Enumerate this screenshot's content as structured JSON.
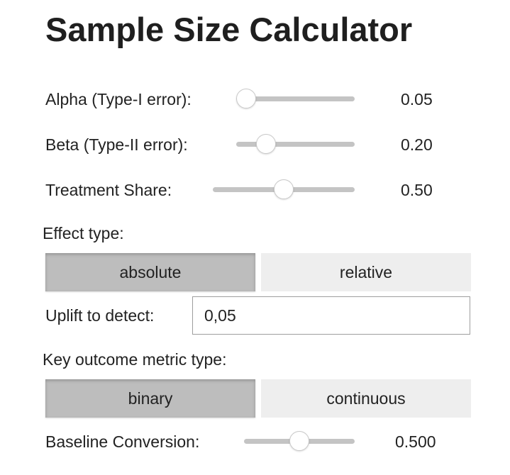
{
  "title": "Sample Size Calculator",
  "alpha": {
    "label": "Alpha (Type-I error):",
    "value": "0.05",
    "slider_fraction": 0.0
  },
  "beta": {
    "label": "Beta (Type-II error):",
    "value": "0.20",
    "slider_fraction": 0.2
  },
  "treatment_share": {
    "label": "Treatment Share:",
    "value": "0.50",
    "slider_fraction": 0.5
  },
  "effect_type": {
    "label": "Effect type:",
    "options": [
      "absolute",
      "relative"
    ],
    "selected": "absolute"
  },
  "uplift": {
    "label": "Uplift to detect:",
    "value": "0,05"
  },
  "metric_type": {
    "label": "Key outcome metric type:",
    "options": [
      "binary",
      "continuous"
    ],
    "selected": "binary"
  },
  "baseline": {
    "label": "Baseline Conversion:",
    "value": "0.500",
    "slider_fraction": 0.5
  },
  "colors": {
    "active_button": "#bdbdbd",
    "inactive_button": "#eeeeee",
    "slider_track": "#c4c4c4",
    "text": "#1f1f1f"
  }
}
